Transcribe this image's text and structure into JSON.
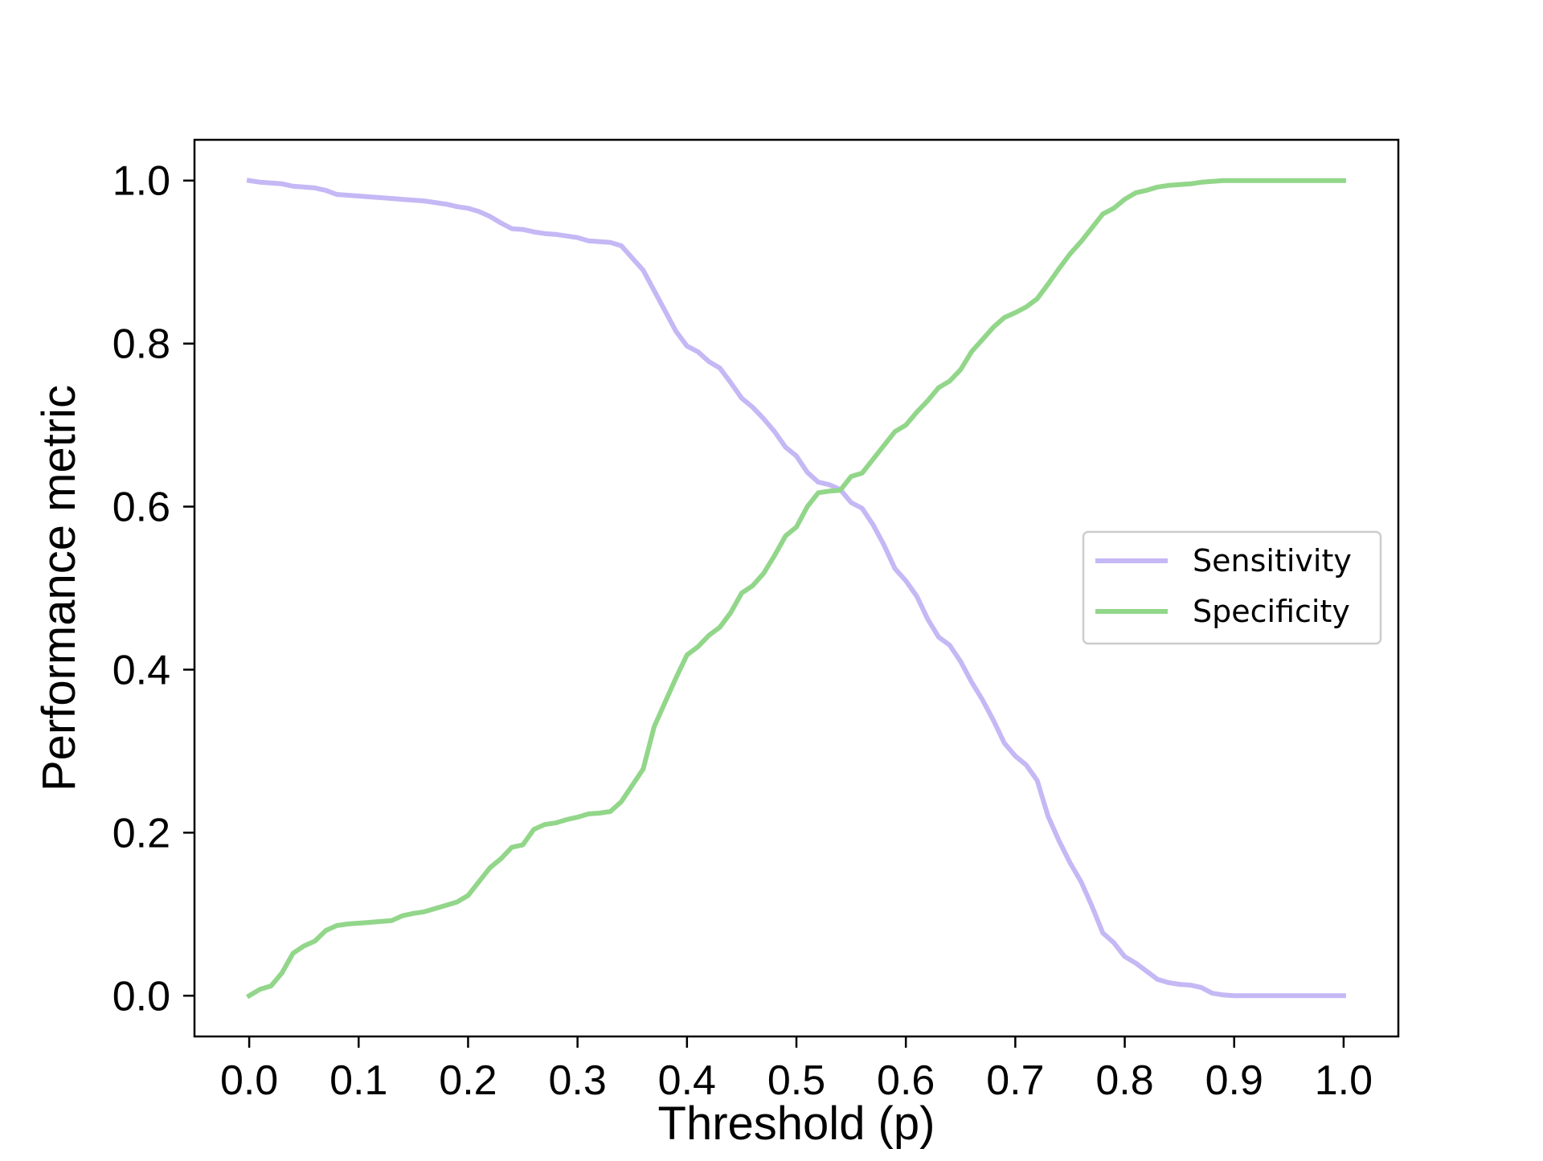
{
  "chart_data": {
    "type": "line",
    "title": "",
    "xlabel": "Threshold (p)",
    "ylabel": "Performance metric",
    "xlim": [
      -0.05,
      1.05
    ],
    "ylim": [
      -0.05,
      1.05
    ],
    "x_ticks": [
      "0.0",
      "0.1",
      "0.2",
      "0.3",
      "0.4",
      "0.5",
      "0.6",
      "0.7",
      "0.8",
      "0.9",
      "1.0"
    ],
    "y_ticks": [
      "0.0",
      "0.2",
      "0.4",
      "0.6",
      "0.8",
      "1.0"
    ],
    "grid": false,
    "legend_position": "center-right",
    "x": [
      0.0,
      0.01,
      0.02,
      0.03,
      0.04,
      0.05,
      0.06,
      0.07,
      0.08,
      0.09,
      0.1,
      0.11,
      0.12,
      0.13,
      0.14,
      0.15,
      0.16,
      0.17,
      0.18,
      0.19,
      0.2,
      0.21,
      0.22,
      0.23,
      0.24,
      0.25,
      0.26,
      0.27,
      0.28,
      0.29,
      0.3,
      0.31,
      0.32,
      0.33,
      0.34,
      0.35,
      0.36,
      0.37,
      0.38,
      0.39,
      0.4,
      0.41,
      0.42,
      0.43,
      0.44,
      0.45,
      0.46,
      0.47,
      0.48,
      0.49,
      0.5,
      0.51,
      0.52,
      0.53,
      0.54,
      0.55,
      0.56,
      0.57,
      0.58,
      0.59,
      0.6,
      0.61,
      0.62,
      0.63,
      0.64,
      0.65,
      0.66,
      0.67,
      0.68,
      0.69,
      0.7,
      0.71,
      0.72,
      0.73,
      0.74,
      0.75,
      0.76,
      0.77,
      0.78,
      0.79,
      0.8,
      0.81,
      0.82,
      0.83,
      0.84,
      0.85,
      0.86,
      0.87,
      0.88,
      0.89,
      0.9,
      0.91,
      0.92,
      0.93,
      0.94,
      0.95,
      0.96,
      0.97,
      0.98,
      0.99,
      1.0
    ],
    "series": [
      {
        "name": "Sensitivity",
        "color": "#c5b8f5",
        "values": [
          1.0,
          0.998,
          0.997,
          0.996,
          0.993,
          0.992,
          0.991,
          0.988,
          0.983,
          0.982,
          0.981,
          0.98,
          0.979,
          0.978,
          0.977,
          0.976,
          0.975,
          0.973,
          0.971,
          0.968,
          0.966,
          0.962,
          0.956,
          0.948,
          0.941,
          0.94,
          0.937,
          0.935,
          0.934,
          0.932,
          0.93,
          0.926,
          0.925,
          0.924,
          0.92,
          0.905,
          0.89,
          0.865,
          0.84,
          0.815,
          0.797,
          0.79,
          0.778,
          0.77,
          0.752,
          0.733,
          0.722,
          0.708,
          0.692,
          0.673,
          0.662,
          0.642,
          0.63,
          0.627,
          0.621,
          0.605,
          0.598,
          0.578,
          0.553,
          0.524,
          0.509,
          0.49,
          0.462,
          0.44,
          0.43,
          0.41,
          0.385,
          0.363,
          0.338,
          0.31,
          0.294,
          0.283,
          0.264,
          0.22,
          0.19,
          0.163,
          0.14,
          0.11,
          0.077,
          0.065,
          0.048,
          0.04,
          0.03,
          0.02,
          0.016,
          0.014,
          0.013,
          0.01,
          0.003,
          0.001,
          0.0,
          0.0,
          0.0,
          0.0,
          0.0,
          0.0,
          0.0,
          0.0,
          0.0,
          0.0,
          0.0
        ]
      },
      {
        "name": "Specificity",
        "color": "#92d68a",
        "values": [
          0.0,
          0.008,
          0.012,
          0.028,
          0.052,
          0.061,
          0.067,
          0.08,
          0.086,
          0.088,
          0.089,
          0.09,
          0.091,
          0.092,
          0.098,
          0.101,
          0.103,
          0.107,
          0.111,
          0.115,
          0.123,
          0.14,
          0.157,
          0.168,
          0.182,
          0.185,
          0.204,
          0.21,
          0.212,
          0.216,
          0.219,
          0.223,
          0.224,
          0.226,
          0.238,
          0.258,
          0.278,
          0.33,
          0.36,
          0.39,
          0.418,
          0.428,
          0.442,
          0.452,
          0.47,
          0.494,
          0.503,
          0.518,
          0.54,
          0.564,
          0.575,
          0.6,
          0.617,
          0.619,
          0.62,
          0.637,
          0.641,
          0.658,
          0.675,
          0.692,
          0.7,
          0.716,
          0.73,
          0.746,
          0.754,
          0.768,
          0.79,
          0.805,
          0.82,
          0.832,
          0.838,
          0.845,
          0.855,
          0.873,
          0.892,
          0.91,
          0.925,
          0.942,
          0.959,
          0.966,
          0.977,
          0.985,
          0.988,
          0.992,
          0.994,
          0.995,
          0.996,
          0.998,
          0.999,
          1.0,
          1.0,
          1.0,
          1.0,
          1.0,
          1.0,
          1.0,
          1.0,
          1.0,
          1.0,
          1.0,
          1.0
        ]
      }
    ]
  }
}
